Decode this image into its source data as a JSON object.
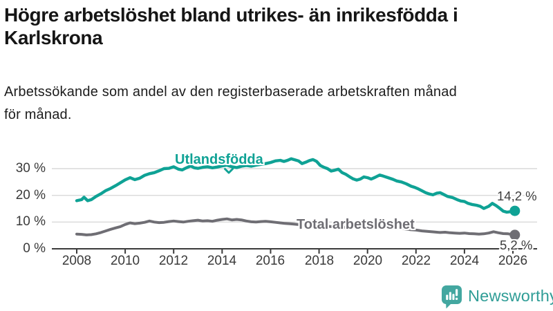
{
  "header": {
    "title_lines": [
      "Högre arbetslöshet bland utrikes- än inrikesfödda i",
      "Karlskrona"
    ],
    "subtitle_lines": [
      "Arbetssökande som andel av den registerbaserade arbetskraften månad",
      "för månad."
    ]
  },
  "chart_data": {
    "type": "line",
    "title": "Högre arbetslöshet bland utrikes- än inrikesfödda i Karlskrona",
    "subtitle": "Arbetssökande som andel av den registerbaserade arbetskraften månad för månad.",
    "xlabel": "",
    "ylabel": "",
    "unit": "%",
    "grid": true,
    "legend": "inline-labels",
    "ylim": [
      0,
      35
    ],
    "x_ticks": [
      2008,
      2010,
      2012,
      2014,
      2016,
      2018,
      2020,
      2022,
      2024,
      2026
    ],
    "y_ticks": [
      {
        "value": 0,
        "label": "0 %"
      },
      {
        "value": 10,
        "label": "10 %"
      },
      {
        "value": 20,
        "label": "20 %"
      },
      {
        "value": 30,
        "label": "30 %"
      }
    ],
    "series": [
      {
        "name": "Utlandsfödda",
        "color": "#0fa295",
        "end_label": "14,2 %",
        "end_value": 14.2,
        "points": [
          [
            2008.0,
            18.0
          ],
          [
            2008.2,
            18.4
          ],
          [
            2008.3,
            19.3
          ],
          [
            2008.45,
            18.0
          ],
          [
            2008.6,
            18.4
          ],
          [
            2008.8,
            19.6
          ],
          [
            2009.0,
            20.6
          ],
          [
            2009.2,
            21.8
          ],
          [
            2009.4,
            22.6
          ],
          [
            2009.6,
            23.6
          ],
          [
            2009.8,
            24.7
          ],
          [
            2010.0,
            25.8
          ],
          [
            2010.2,
            26.6
          ],
          [
            2010.4,
            25.9
          ],
          [
            2010.6,
            26.4
          ],
          [
            2010.8,
            27.5
          ],
          [
            2011.0,
            28.1
          ],
          [
            2011.2,
            28.5
          ],
          [
            2011.4,
            29.2
          ],
          [
            2011.6,
            30.0
          ],
          [
            2011.8,
            30.1
          ],
          [
            2012.0,
            30.7
          ],
          [
            2012.2,
            29.8
          ],
          [
            2012.35,
            29.5
          ],
          [
            2012.5,
            30.2
          ],
          [
            2012.7,
            31.0
          ],
          [
            2012.85,
            30.3
          ],
          [
            2013.0,
            30.1
          ],
          [
            2013.2,
            30.5
          ],
          [
            2013.4,
            30.7
          ],
          [
            2013.6,
            30.3
          ],
          [
            2013.8,
            30.6
          ],
          [
            2014.0,
            31.0
          ],
          [
            2014.2,
            31.3
          ],
          [
            2014.4,
            30.7
          ],
          [
            2014.6,
            30.4
          ],
          [
            2014.8,
            30.9
          ],
          [
            2015.0,
            31.2
          ],
          [
            2015.2,
            30.9
          ],
          [
            2015.4,
            31.3
          ],
          [
            2015.6,
            31.6
          ],
          [
            2015.8,
            31.9
          ],
          [
            2016.0,
            32.3
          ],
          [
            2016.2,
            32.9
          ],
          [
            2016.4,
            33.1
          ],
          [
            2016.55,
            32.7
          ],
          [
            2016.7,
            33.1
          ],
          [
            2016.85,
            33.7
          ],
          [
            2017.0,
            33.3
          ],
          [
            2017.15,
            32.9
          ],
          [
            2017.3,
            31.9
          ],
          [
            2017.45,
            32.4
          ],
          [
            2017.6,
            33.0
          ],
          [
            2017.75,
            33.4
          ],
          [
            2017.9,
            32.7
          ],
          [
            2018.05,
            31.2
          ],
          [
            2018.2,
            30.5
          ],
          [
            2018.35,
            30.0
          ],
          [
            2018.5,
            29.1
          ],
          [
            2018.65,
            29.4
          ],
          [
            2018.8,
            29.8
          ],
          [
            2018.95,
            28.5
          ],
          [
            2019.1,
            27.9
          ],
          [
            2019.25,
            27.0
          ],
          [
            2019.4,
            26.2
          ],
          [
            2019.55,
            25.7
          ],
          [
            2019.7,
            26.1
          ],
          [
            2019.85,
            26.9
          ],
          [
            2020.0,
            26.6
          ],
          [
            2020.15,
            26.1
          ],
          [
            2020.3,
            26.7
          ],
          [
            2020.5,
            27.6
          ],
          [
            2020.65,
            27.2
          ],
          [
            2020.85,
            26.6
          ],
          [
            2021.05,
            26.0
          ],
          [
            2021.2,
            25.4
          ],
          [
            2021.4,
            25.0
          ],
          [
            2021.6,
            24.3
          ],
          [
            2021.8,
            23.4
          ],
          [
            2021.95,
            23.0
          ],
          [
            2022.1,
            22.4
          ],
          [
            2022.25,
            21.7
          ],
          [
            2022.4,
            21.0
          ],
          [
            2022.55,
            20.5
          ],
          [
            2022.7,
            20.2
          ],
          [
            2022.85,
            20.8
          ],
          [
            2023.0,
            21.0
          ],
          [
            2023.15,
            20.3
          ],
          [
            2023.3,
            19.6
          ],
          [
            2023.5,
            19.2
          ],
          [
            2023.7,
            18.4
          ],
          [
            2023.85,
            17.9
          ],
          [
            2024.0,
            17.7
          ],
          [
            2024.15,
            17.0
          ],
          [
            2024.3,
            16.6
          ],
          [
            2024.5,
            16.3
          ],
          [
            2024.65,
            15.9
          ],
          [
            2024.8,
            15.1
          ],
          [
            2025.0,
            15.9
          ],
          [
            2025.15,
            17.0
          ],
          [
            2025.3,
            16.2
          ],
          [
            2025.45,
            15.2
          ],
          [
            2025.6,
            14.1
          ],
          [
            2025.75,
            13.7
          ],
          [
            2025.9,
            13.9
          ],
          [
            2026.08,
            14.2
          ]
        ]
      },
      {
        "name": "Total arbetslöshet",
        "color": "#6f6e74",
        "end_label": "5,2 %",
        "end_value": 5.2,
        "points": [
          [
            2008.0,
            5.5
          ],
          [
            2008.2,
            5.4
          ],
          [
            2008.4,
            5.2
          ],
          [
            2008.6,
            5.3
          ],
          [
            2008.8,
            5.6
          ],
          [
            2009.0,
            6.1
          ],
          [
            2009.2,
            6.7
          ],
          [
            2009.4,
            7.3
          ],
          [
            2009.6,
            7.8
          ],
          [
            2009.8,
            8.3
          ],
          [
            2010.0,
            9.1
          ],
          [
            2010.2,
            9.7
          ],
          [
            2010.4,
            9.4
          ],
          [
            2010.6,
            9.6
          ],
          [
            2010.8,
            9.9
          ],
          [
            2011.0,
            10.4
          ],
          [
            2011.2,
            10.0
          ],
          [
            2011.4,
            9.8
          ],
          [
            2011.6,
            9.9
          ],
          [
            2011.8,
            10.2
          ],
          [
            2012.0,
            10.4
          ],
          [
            2012.2,
            10.2
          ],
          [
            2012.4,
            10.0
          ],
          [
            2012.6,
            10.3
          ],
          [
            2012.8,
            10.5
          ],
          [
            2013.0,
            10.7
          ],
          [
            2013.2,
            10.4
          ],
          [
            2013.4,
            10.5
          ],
          [
            2013.6,
            10.3
          ],
          [
            2013.8,
            10.7
          ],
          [
            2014.0,
            11.0
          ],
          [
            2014.2,
            11.2
          ],
          [
            2014.4,
            10.8
          ],
          [
            2014.6,
            11.0
          ],
          [
            2014.8,
            10.8
          ],
          [
            2015.0,
            10.4
          ],
          [
            2015.2,
            10.1
          ],
          [
            2015.4,
            10.0
          ],
          [
            2015.6,
            10.2
          ],
          [
            2015.8,
            10.3
          ],
          [
            2016.0,
            10.1
          ],
          [
            2016.2,
            9.9
          ],
          [
            2016.4,
            9.7
          ],
          [
            2016.6,
            9.5
          ],
          [
            2016.8,
            9.4
          ],
          [
            2017.0,
            9.2
          ],
          [
            2017.25,
            9.0
          ],
          [
            2017.5,
            8.8
          ],
          [
            2017.75,
            8.7
          ],
          [
            2018.0,
            8.6
          ],
          [
            2018.25,
            8.5
          ],
          [
            2018.5,
            8.3
          ],
          [
            2018.75,
            8.2
          ],
          [
            2019.0,
            8.1
          ],
          [
            2019.25,
            8.0
          ],
          [
            2019.5,
            7.9
          ],
          [
            2019.75,
            8.0
          ],
          [
            2020.0,
            8.2
          ],
          [
            2020.25,
            8.5
          ],
          [
            2020.5,
            8.6
          ],
          [
            2020.75,
            8.4
          ],
          [
            2021.0,
            8.1
          ],
          [
            2021.25,
            7.8
          ],
          [
            2021.5,
            7.5
          ],
          [
            2021.75,
            7.2
          ],
          [
            2022.0,
            7.0
          ],
          [
            2022.25,
            6.7
          ],
          [
            2022.5,
            6.5
          ],
          [
            2022.75,
            6.3
          ],
          [
            2023.0,
            6.1
          ],
          [
            2023.2,
            6.2
          ],
          [
            2023.4,
            6.0
          ],
          [
            2023.6,
            5.9
          ],
          [
            2023.8,
            5.8
          ],
          [
            2024.0,
            5.9
          ],
          [
            2024.2,
            5.7
          ],
          [
            2024.4,
            5.6
          ],
          [
            2024.6,
            5.5
          ],
          [
            2024.8,
            5.6
          ],
          [
            2025.0,
            5.9
          ],
          [
            2025.2,
            6.4
          ],
          [
            2025.4,
            6.0
          ],
          [
            2025.6,
            5.7
          ],
          [
            2025.8,
            5.6
          ],
          [
            2026.08,
            5.2
          ]
        ]
      }
    ]
  },
  "colors": {
    "accent_teal": "#0fa295",
    "series_gray": "#6f6e74",
    "grid": "#d9d9d9",
    "axis": "#3a3a3a",
    "logo_bubble": "#43a7a0",
    "logo_text": "#2f9d96"
  },
  "footer": {
    "brand": "Newsworthy"
  }
}
